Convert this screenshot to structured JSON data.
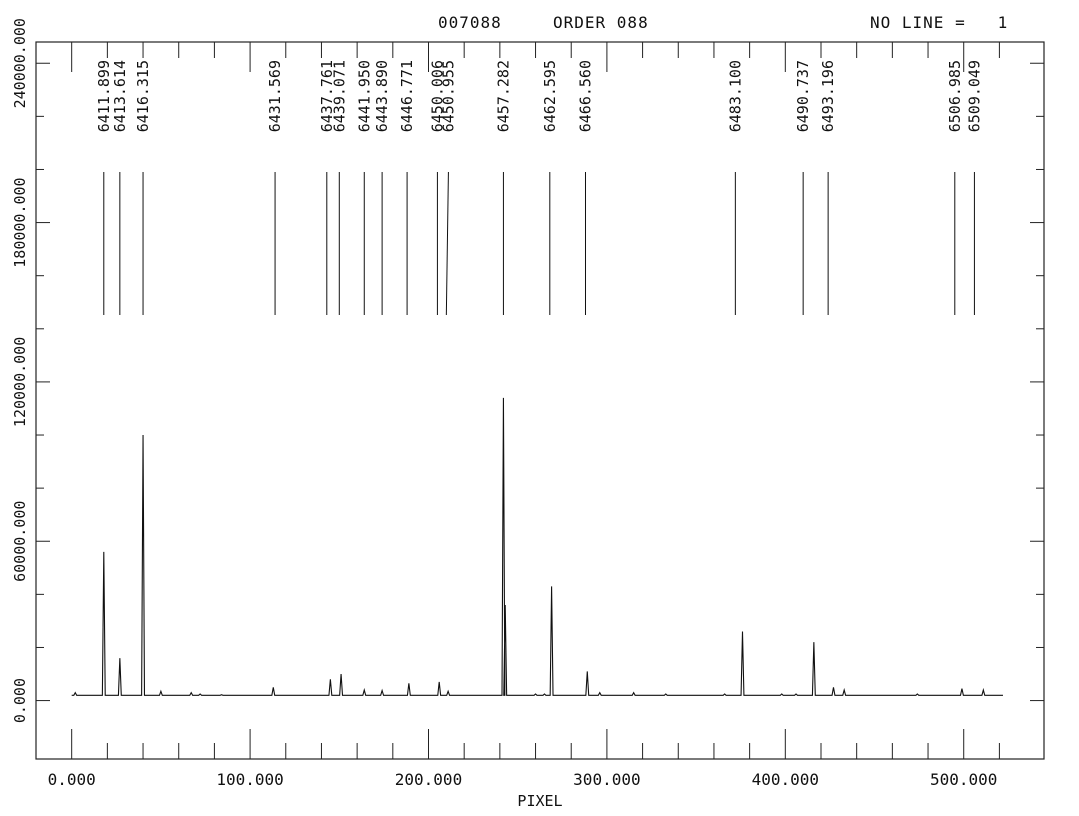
{
  "header": {
    "plate_id": "007088",
    "order_label": "ORDER 088",
    "no_line": "NO LINE =   1"
  },
  "chart_data": {
    "type": "line",
    "xlabel": "PIXEL",
    "ylabel": "",
    "xlim": [
      -20,
      545
    ],
    "ylim": [
      -22000,
      248000
    ],
    "x_ticks": [
      0,
      100,
      200,
      300,
      400,
      500
    ],
    "x_tick_labels": [
      "0.000",
      "100.000",
      "200.000",
      "300.000",
      "400.000",
      "500.000"
    ],
    "y_ticks": [
      0,
      60000,
      120000,
      180000,
      240000
    ],
    "y_tick_labels": [
      "0.000",
      "60000.000",
      "120000.000",
      "180000.000",
      "240000.000"
    ],
    "grid": false,
    "line_identifications": [
      {
        "wavelength": "6411.899",
        "pixel": 18
      },
      {
        "wavelength": "6413.614",
        "pixel": 27
      },
      {
        "wavelength": "6416.315",
        "pixel": 40
      },
      {
        "wavelength": "6431.569",
        "pixel": 114
      },
      {
        "wavelength": "6437.761",
        "pixel": 143
      },
      {
        "wavelength": "6439.071",
        "pixel": 150
      },
      {
        "wavelength": "6441.950",
        "pixel": 164
      },
      {
        "wavelength": "6443.890",
        "pixel": 174
      },
      {
        "wavelength": "6446.771",
        "pixel": 188
      },
      {
        "wavelength": "6450.006",
        "pixel": 205
      },
      {
        "wavelength": "6450.955",
        "pixel": 210
      },
      {
        "wavelength": "6457.282",
        "pixel": 242
      },
      {
        "wavelength": "6462.595",
        "pixel": 268
      },
      {
        "wavelength": "6466.560",
        "pixel": 288
      },
      {
        "wavelength": "6483.100",
        "pixel": 372
      },
      {
        "wavelength": "6490.737",
        "pixel": 410
      },
      {
        "wavelength": "6493.196",
        "pixel": 424
      },
      {
        "wavelength": "6506.985",
        "pixel": 495
      },
      {
        "wavelength": "6509.049",
        "pixel": 506
      }
    ],
    "series": [
      {
        "baseline": 2000,
        "x_range": [
          0,
          522
        ],
        "peaks": [
          {
            "x": 2,
            "y": 3000
          },
          {
            "x": 18,
            "y": 56000
          },
          {
            "x": 27,
            "y": 16000
          },
          {
            "x": 40,
            "y": 100000
          },
          {
            "x": 50,
            "y": 3500
          },
          {
            "x": 67,
            "y": 3000
          },
          {
            "x": 72,
            "y": 2500
          },
          {
            "x": 84,
            "y": 2200
          },
          {
            "x": 113,
            "y": 5000
          },
          {
            "x": 145,
            "y": 8000
          },
          {
            "x": 151,
            "y": 10000
          },
          {
            "x": 164,
            "y": 4000
          },
          {
            "x": 174,
            "y": 3800
          },
          {
            "x": 189,
            "y": 6500
          },
          {
            "x": 206,
            "y": 7000
          },
          {
            "x": 211,
            "y": 3500
          },
          {
            "x": 242,
            "y": 114000
          },
          {
            "x": 243,
            "y": 36000
          },
          {
            "x": 260,
            "y": 2500
          },
          {
            "x": 265,
            "y": 2500
          },
          {
            "x": 269,
            "y": 43000
          },
          {
            "x": 289,
            "y": 11000
          },
          {
            "x": 296,
            "y": 3000
          },
          {
            "x": 315,
            "y": 3000
          },
          {
            "x": 333,
            "y": 2500
          },
          {
            "x": 366,
            "y": 2500
          },
          {
            "x": 376,
            "y": 26000
          },
          {
            "x": 398,
            "y": 2500
          },
          {
            "x": 406,
            "y": 2500
          },
          {
            "x": 416,
            "y": 22000
          },
          {
            "x": 427,
            "y": 5000
          },
          {
            "x": 433,
            "y": 4000
          },
          {
            "x": 474,
            "y": 2500
          },
          {
            "x": 499,
            "y": 4500
          },
          {
            "x": 511,
            "y": 4000
          }
        ]
      }
    ]
  }
}
